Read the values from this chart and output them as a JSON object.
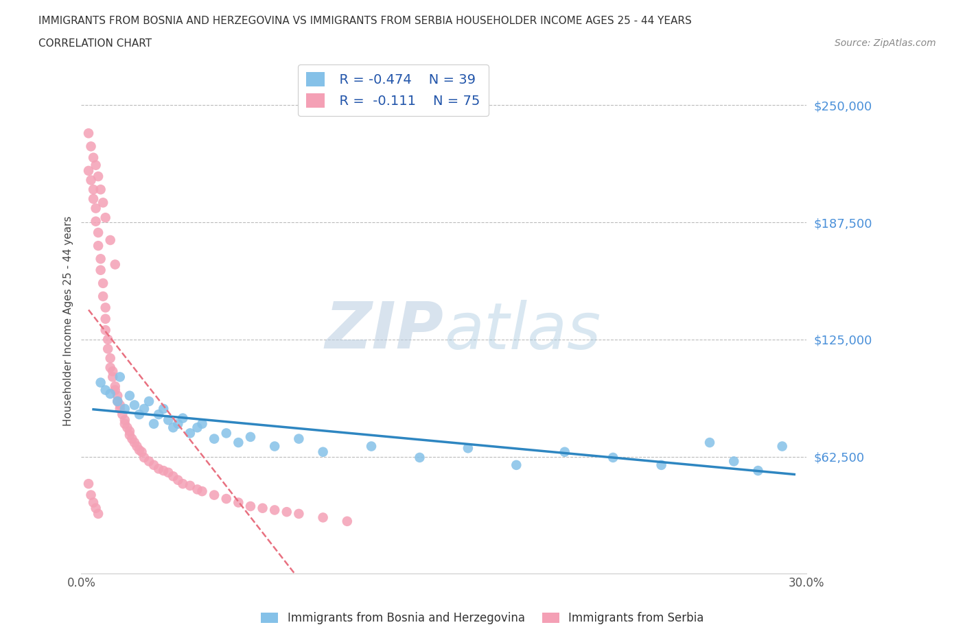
{
  "title_line1": "IMMIGRANTS FROM BOSNIA AND HERZEGOVINA VS IMMIGRANTS FROM SERBIA HOUSEHOLDER INCOME AGES 25 - 44 YEARS",
  "title_line2": "CORRELATION CHART",
  "source": "Source: ZipAtlas.com",
  "ylabel": "Householder Income Ages 25 - 44 years",
  "watermark_zip": "ZIP",
  "watermark_atlas": "atlas",
  "legend_bosnia_r": "R = -0.474",
  "legend_bosnia_n": "N = 39",
  "legend_serbia_r": "R =  -0.111",
  "legend_serbia_n": "N = 75",
  "xlim": [
    0.0,
    0.3
  ],
  "ylim": [
    0,
    270000
  ],
  "yticks": [
    0,
    62500,
    125000,
    187500,
    250000
  ],
  "ytick_labels": [
    "",
    "$62,500",
    "$125,000",
    "$187,500",
    "$250,000"
  ],
  "xticks": [
    0.0,
    0.05,
    0.1,
    0.15,
    0.2,
    0.25,
    0.3
  ],
  "xtick_labels": [
    "0.0%",
    "",
    "",
    "",
    "",
    "",
    "30.0%"
  ],
  "color_bosnia": "#85C1E8",
  "color_serbia": "#F4A0B5",
  "line_color_bosnia": "#2E86C1",
  "line_color_serbia": "#E87080",
  "grid_color": "#BBBBBB",
  "background_color": "#FFFFFF",
  "bosnia_x": [
    0.008,
    0.01,
    0.012,
    0.015,
    0.016,
    0.018,
    0.02,
    0.022,
    0.024,
    0.026,
    0.028,
    0.03,
    0.032,
    0.034,
    0.036,
    0.038,
    0.04,
    0.042,
    0.045,
    0.048,
    0.05,
    0.055,
    0.06,
    0.065,
    0.07,
    0.08,
    0.09,
    0.1,
    0.12,
    0.14,
    0.16,
    0.18,
    0.2,
    0.22,
    0.24,
    0.26,
    0.27,
    0.28,
    0.29
  ],
  "bosnia_y": [
    102000,
    98000,
    96000,
    92000,
    105000,
    88000,
    95000,
    90000,
    85000,
    88000,
    92000,
    80000,
    85000,
    88000,
    82000,
    78000,
    80000,
    83000,
    75000,
    78000,
    80000,
    72000,
    75000,
    70000,
    73000,
    68000,
    72000,
    65000,
    68000,
    62000,
    67000,
    58000,
    65000,
    62000,
    58000,
    70000,
    60000,
    55000,
    68000
  ],
  "serbia_x": [
    0.003,
    0.004,
    0.005,
    0.005,
    0.006,
    0.006,
    0.007,
    0.007,
    0.008,
    0.008,
    0.009,
    0.009,
    0.01,
    0.01,
    0.01,
    0.011,
    0.011,
    0.012,
    0.012,
    0.013,
    0.013,
    0.014,
    0.014,
    0.015,
    0.015,
    0.016,
    0.016,
    0.017,
    0.018,
    0.018,
    0.019,
    0.02,
    0.02,
    0.021,
    0.022,
    0.023,
    0.024,
    0.025,
    0.026,
    0.028,
    0.03,
    0.032,
    0.034,
    0.036,
    0.038,
    0.04,
    0.042,
    0.045,
    0.048,
    0.05,
    0.055,
    0.06,
    0.065,
    0.07,
    0.075,
    0.08,
    0.085,
    0.09,
    0.1,
    0.11,
    0.003,
    0.004,
    0.005,
    0.006,
    0.007,
    0.008,
    0.009,
    0.01,
    0.012,
    0.014,
    0.003,
    0.004,
    0.005,
    0.006,
    0.007
  ],
  "serbia_y": [
    215000,
    210000,
    205000,
    200000,
    195000,
    188000,
    182000,
    175000,
    168000,
    162000,
    155000,
    148000,
    142000,
    136000,
    130000,
    125000,
    120000,
    115000,
    110000,
    108000,
    105000,
    100000,
    98000,
    95000,
    92000,
    90000,
    88000,
    85000,
    82000,
    80000,
    78000,
    76000,
    74000,
    72000,
    70000,
    68000,
    66000,
    65000,
    62000,
    60000,
    58000,
    56000,
    55000,
    54000,
    52000,
    50000,
    48000,
    47000,
    45000,
    44000,
    42000,
    40000,
    38000,
    36000,
    35000,
    34000,
    33000,
    32000,
    30000,
    28000,
    235000,
    228000,
    222000,
    218000,
    212000,
    205000,
    198000,
    190000,
    178000,
    165000,
    48000,
    42000,
    38000,
    35000,
    32000
  ]
}
